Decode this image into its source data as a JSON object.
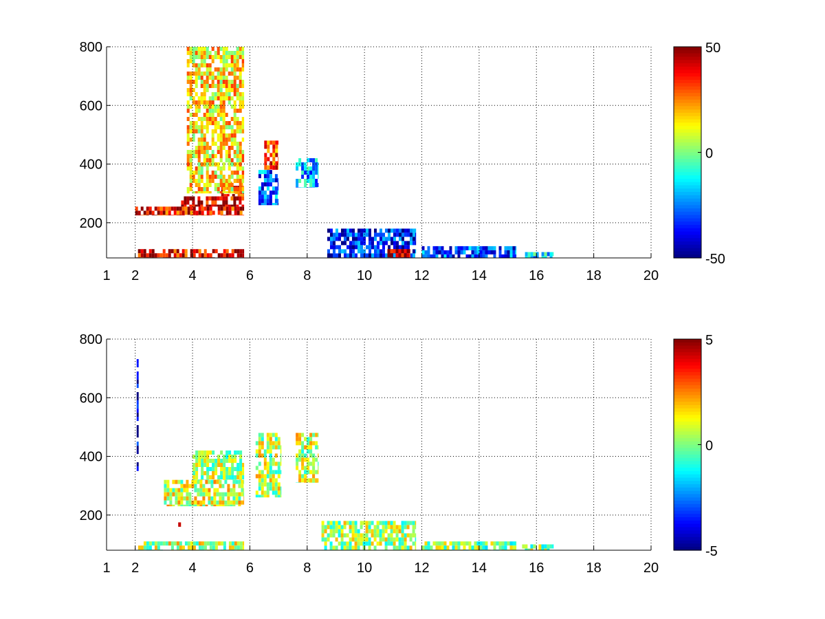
{
  "chart_data": [
    {
      "type": "heatmap",
      "title": "",
      "xlabel": "",
      "ylabel": "",
      "xlim": [
        1,
        20
      ],
      "ylim": [
        80,
        800
      ],
      "x_ticks": [
        1,
        2,
        4,
        6,
        8,
        10,
        12,
        14,
        16,
        18,
        20
      ],
      "y_ticks": [
        200,
        400,
        600,
        800
      ],
      "grid": true,
      "colormap": "jet",
      "clim": [
        -50,
        50
      ],
      "colorbar_ticks": [
        -50,
        0,
        50
      ],
      "regions": [
        {
          "x": [
            2.0,
            5.8
          ],
          "y": [
            225,
            255
          ],
          "value": 38
        },
        {
          "x": [
            3.6,
            5.8
          ],
          "y": [
            255,
            290
          ],
          "value": 42
        },
        {
          "x": [
            5.0,
            5.8
          ],
          "y": [
            290,
            340
          ],
          "value": 36
        },
        {
          "x": [
            2.0,
            5.8
          ],
          "y": [
            80,
            110
          ],
          "value": 40
        },
        {
          "x": [
            3.8,
            5.8
          ],
          "y": [
            300,
            800
          ],
          "value": 15
        },
        {
          "x": [
            6.3,
            7.0
          ],
          "y": [
            260,
            380
          ],
          "value": -28
        },
        {
          "x": [
            6.5,
            7.0
          ],
          "y": [
            380,
            480
          ],
          "value": 30
        },
        {
          "x": [
            7.6,
            8.4
          ],
          "y": [
            320,
            420
          ],
          "value": -20
        },
        {
          "x": [
            8.7,
            11.8
          ],
          "y": [
            80,
            180
          ],
          "value": -35
        },
        {
          "x": [
            10.8,
            11.6
          ],
          "y": [
            80,
            110
          ],
          "value": 45
        },
        {
          "x": [
            12.0,
            15.3
          ],
          "y": [
            80,
            120
          ],
          "value": -30
        },
        {
          "x": [
            15.6,
            16.6
          ],
          "y": [
            80,
            100
          ],
          "value": -15
        }
      ]
    },
    {
      "type": "heatmap",
      "title": "",
      "xlabel": "",
      "ylabel": "",
      "xlim": [
        1,
        20
      ],
      "ylim": [
        80,
        800
      ],
      "x_ticks": [
        1,
        2,
        4,
        6,
        8,
        10,
        12,
        14,
        16,
        18,
        20
      ],
      "y_ticks": [
        200,
        400,
        600,
        800
      ],
      "grid": true,
      "colormap": "jet",
      "clim": [
        -5,
        5
      ],
      "colorbar_ticks": [
        -5,
        0,
        5
      ],
      "regions": [
        {
          "x": [
            2.1,
            5.8
          ],
          "y": [
            80,
            110
          ],
          "value": 0.6
        },
        {
          "x": [
            3.0,
            5.8
          ],
          "y": [
            230,
            320
          ],
          "value": 0.8
        },
        {
          "x": [
            4.0,
            5.8
          ],
          "y": [
            320,
            420
          ],
          "value": 0.5
        },
        {
          "x": [
            6.2,
            7.1
          ],
          "y": [
            260,
            480
          ],
          "value": 0.6
        },
        {
          "x": [
            7.6,
            8.4
          ],
          "y": [
            310,
            480
          ],
          "value": 0.7
        },
        {
          "x": [
            8.5,
            11.8
          ],
          "y": [
            80,
            180
          ],
          "value": 0.4
        },
        {
          "x": [
            12.0,
            15.3
          ],
          "y": [
            80,
            110
          ],
          "value": 0.1
        },
        {
          "x": [
            15.5,
            16.6
          ],
          "y": [
            80,
            100
          ],
          "value": 0.2
        },
        {
          "x": [
            2.05,
            2.12
          ],
          "y": [
            350,
            760
          ],
          "value": -4.5
        },
        {
          "x": [
            3.5,
            3.6
          ],
          "y": [
            160,
            175
          ],
          "value": 4
        }
      ]
    }
  ]
}
